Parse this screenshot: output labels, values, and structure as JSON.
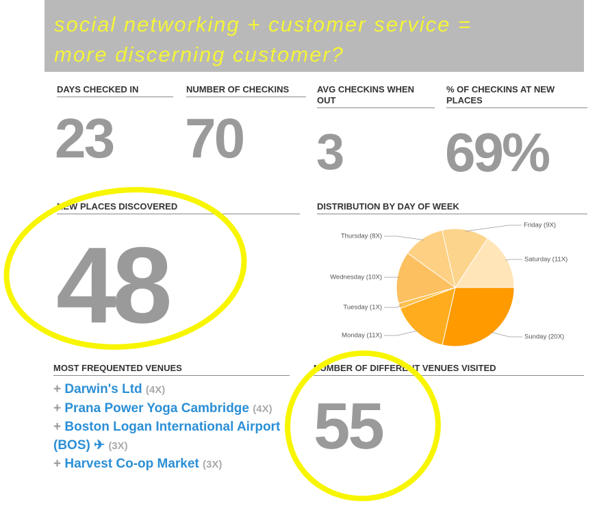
{
  "banner": {
    "lines": [
      "social networking + customer service =",
      "more discerning customer?"
    ]
  },
  "stats": [
    {
      "label": "DAYS CHECKED IN",
      "value": "23"
    },
    {
      "label": "NUMBER OF CHECKINS",
      "value": "70"
    },
    {
      "label": "AVG CHECKINS WHEN OUT",
      "value": "3"
    },
    {
      "label": "% OF CHECKINS AT NEW PLACES",
      "value": "69%"
    }
  ],
  "new_places": {
    "label": "NEW PLACES DISCOVERED",
    "value": "48"
  },
  "chart_data": {
    "type": "pie",
    "title": "DISTRIBUTION BY DAY OF WEEK",
    "categories": [
      "Friday (9X)",
      "Saturday (11X)",
      "Sunday (20X)",
      "Monday (11X)",
      "Tuesday (1X)",
      "Wednesday (10X)",
      "Thursday (8X)"
    ],
    "values": [
      9,
      11,
      20,
      11,
      1,
      10,
      8
    ],
    "colors": [
      "#fdd48c",
      "#ffe5b8",
      "#ff9a00",
      "#ffad1f",
      "#ffc04d",
      "#fcc061",
      "#fdd083"
    ]
  },
  "venues": {
    "title": "MOST FREQUENTED VENUES",
    "items": [
      {
        "name": "Darwin's Ltd",
        "count": "(4X)"
      },
      {
        "name": "Prana Power Yoga Cambridge",
        "count": "(4X)"
      },
      {
        "name": "Boston Logan International Airport (BOS) ✈",
        "count": "(3X)"
      },
      {
        "name": "Harvest Co-op Market",
        "count": "(3X)"
      }
    ]
  },
  "different_venues": {
    "label": "NUMBER OF DIFFERENT VENUES VISITED",
    "value": "55"
  }
}
